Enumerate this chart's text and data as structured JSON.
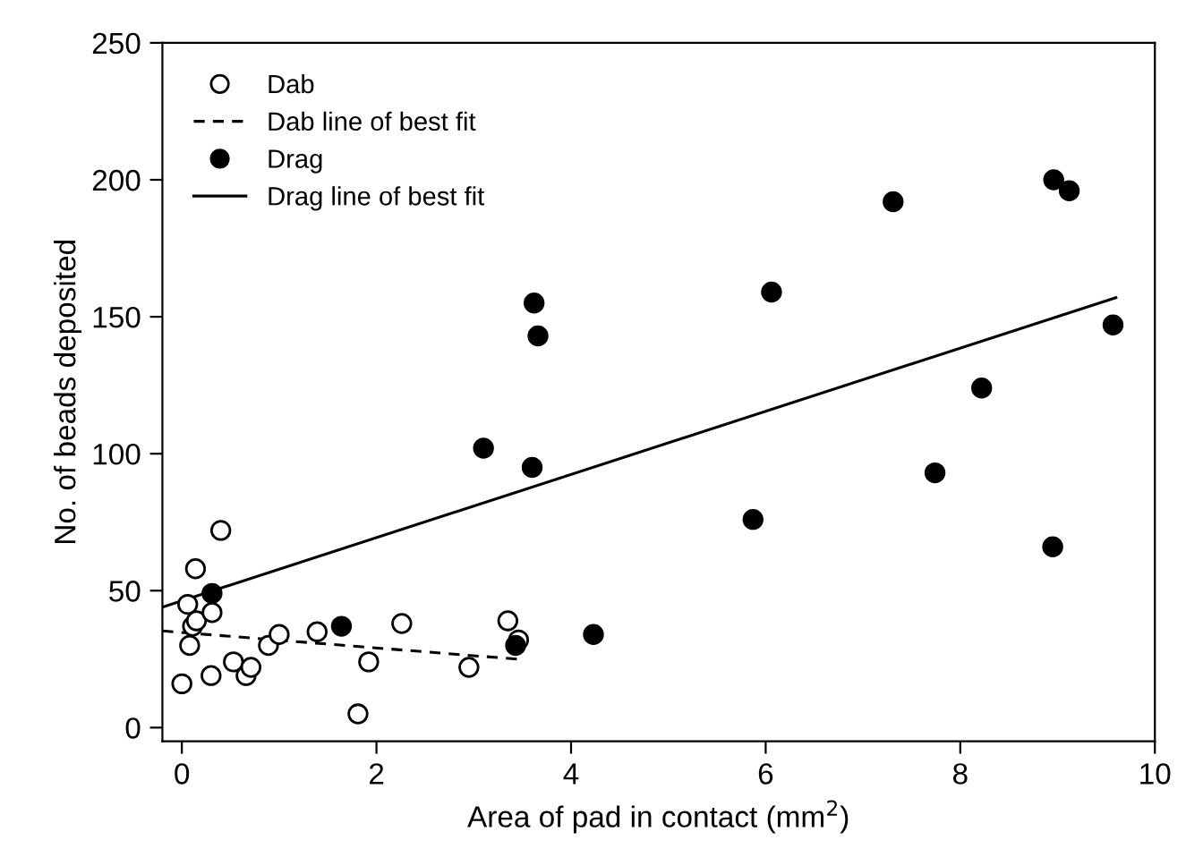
{
  "chart_data": {
    "type": "scatter",
    "xlabel": "Area of pad in contact (mm$^{2}$)",
    "ylabel": "No. of beads deposited",
    "xlim": [
      -0.2,
      10
    ],
    "ylim": [
      -5,
      250
    ],
    "xticks": [
      0,
      2,
      4,
      6,
      8,
      10
    ],
    "yticks": [
      0,
      50,
      100,
      150,
      200,
      250
    ],
    "grid": false,
    "legend": "top left",
    "series": [
      {
        "name": "Dab",
        "marker": "circle",
        "color": "#ffffff",
        "x": [
          0.0,
          0.06,
          0.08,
          0.11,
          0.14,
          0.15,
          0.3,
          0.31,
          0.4,
          0.53,
          0.66,
          0.71,
          0.89,
          1.0,
          1.39,
          1.81,
          1.92,
          2.26,
          2.95,
          3.35,
          3.46
        ],
        "values": [
          16,
          45,
          30,
          37,
          58,
          39,
          19,
          42,
          72,
          24,
          19,
          22,
          30,
          34,
          35,
          5,
          24,
          38,
          22,
          39,
          32
        ]
      },
      {
        "name": "Dab line of best fit",
        "type": "line",
        "marker": "none",
        "line_style": "dashed",
        "color": "#000000",
        "x": [
          -0.2,
          3.48
        ],
        "values": [
          35.3,
          24.9
        ]
      },
      {
        "name": "Drag",
        "marker": "circle",
        "color": "#000000",
        "x": [
          0.31,
          1.64,
          3.43,
          4.23,
          3.1,
          3.6,
          3.62,
          3.66,
          6.06,
          7.31,
          8.96,
          9.12,
          9.57,
          5.87,
          7.74,
          8.95,
          8.22
        ],
        "values": [
          49,
          37,
          30,
          34,
          102,
          95,
          155,
          143,
          159,
          192,
          200,
          196,
          147,
          76,
          93,
          66,
          124
        ]
      },
      {
        "name": "Drag line of best fit",
        "type": "line",
        "marker": "none",
        "line_style": "solid",
        "color": "#000000",
        "x": [
          -0.2,
          9.6
        ],
        "values": [
          44,
          157
        ]
      }
    ]
  }
}
